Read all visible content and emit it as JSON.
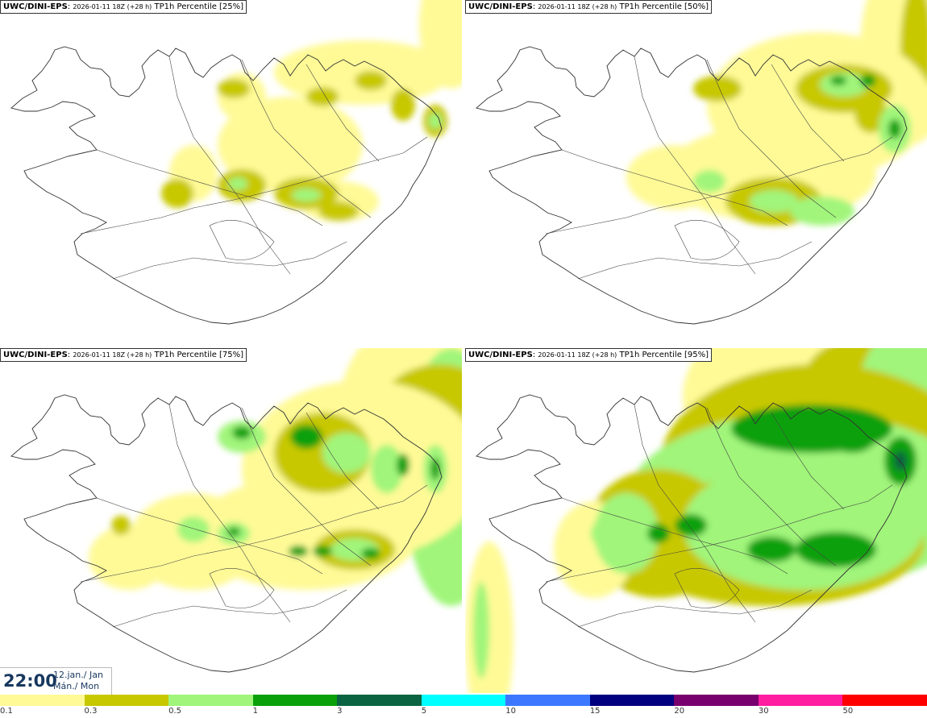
{
  "panels": [
    {
      "model": "UWC/DINI-EPS",
      "run": "2026-01-11 18Z (+28 h)",
      "product": "TP1h Percentile [25%]",
      "percentile": 25
    },
    {
      "model": "UWC/DINI-EPS",
      "run": "2026-01-11 18Z (+28 h)",
      "product": "TP1h Percentile [50%]",
      "percentile": 50
    },
    {
      "model": "UWC/DINI-EPS",
      "run": "2026-01-11 18Z (+28 h)",
      "product": "TP1h Percentile [75%]",
      "percentile": 75
    },
    {
      "model": "UWC/DINI-EPS",
      "run": "2026-01-11 18Z (+28 h)",
      "product": "TP1h Percentile [95%]",
      "percentile": 95
    }
  ],
  "valid_time": {
    "time": "22:00",
    "date_line1": "12.jan./ Jan",
    "date_line2": "Mán./ Mon"
  },
  "legend": {
    "colors": [
      "#fffa96",
      "#c8c800",
      "#a0f57a",
      "#0aa00a",
      "#0a6441",
      "#00ffff",
      "#3c78ff",
      "#000080",
      "#78006e",
      "#ff1ea0",
      "#ff0000"
    ],
    "labels": [
      "0.1",
      "0.3",
      "0.5",
      "1",
      "3",
      "5",
      "10",
      "15",
      "20",
      "30",
      "50"
    ]
  }
}
